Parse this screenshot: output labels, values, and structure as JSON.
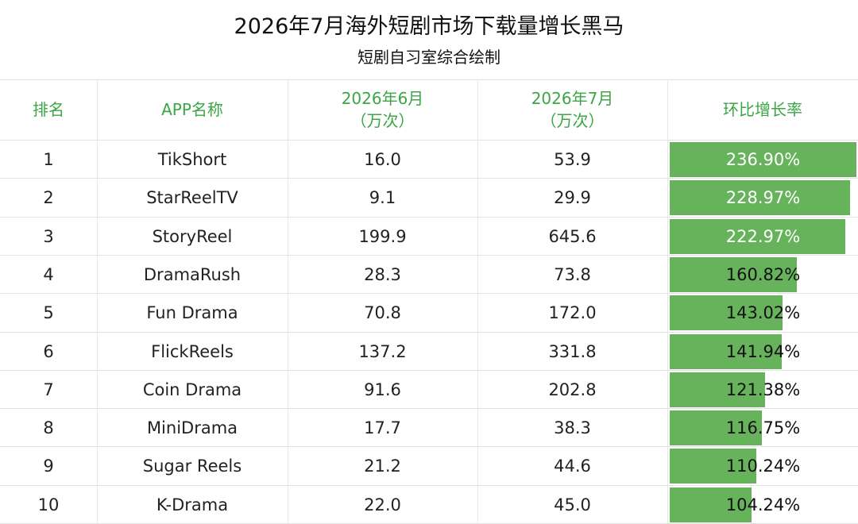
{
  "title": "2026年7月海外短剧市场下载量增长黑马",
  "subtitle": "短剧自习室综合绘制",
  "headers": {
    "rank": "排名",
    "app": "APP名称",
    "june_line1": "2026年6月",
    "june_line2": "（万次）",
    "july_line1": "2026年7月",
    "july_line2": "（万次）",
    "growth": "环比增长率"
  },
  "colors": {
    "header_text": "#3aa644",
    "bar": "#66b35c"
  },
  "chart_data": {
    "type": "table",
    "columns": [
      "排名",
      "APP名称",
      "2026年6月（万次）",
      "2026年7月（万次）",
      "环比增长率"
    ],
    "rows": [
      {
        "rank": "1",
        "app": "TikShort",
        "june": "16.0",
        "july": "53.9",
        "growth": "236.90%",
        "growth_value": 236.9
      },
      {
        "rank": "2",
        "app": "StarReelTV",
        "june": "9.1",
        "july": "29.9",
        "growth": "228.97%",
        "growth_value": 228.97
      },
      {
        "rank": "3",
        "app": "StoryReel",
        "june": "199.9",
        "july": "645.6",
        "growth": "222.97%",
        "growth_value": 222.97
      },
      {
        "rank": "4",
        "app": "DramaRush",
        "june": "28.3",
        "july": "73.8",
        "growth": "160.82%",
        "growth_value": 160.82
      },
      {
        "rank": "5",
        "app": "Fun Drama",
        "june": "70.8",
        "july": "172.0",
        "growth": "143.02%",
        "growth_value": 143.02
      },
      {
        "rank": "6",
        "app": "FlickReels",
        "june": "137.2",
        "july": "331.8",
        "growth": "141.94%",
        "growth_value": 141.94
      },
      {
        "rank": "7",
        "app": "Coin Drama",
        "june": "91.6",
        "july": "202.8",
        "growth": "121.38%",
        "growth_value": 121.38
      },
      {
        "rank": "8",
        "app": "MiniDrama",
        "june": "17.7",
        "july": "38.3",
        "growth": "116.75%",
        "growth_value": 116.75
      },
      {
        "rank": "9",
        "app": "Sugar Reels",
        "june": "21.2",
        "july": "44.6",
        "growth": "110.24%",
        "growth_value": 110.24
      },
      {
        "rank": "10",
        "app": "K-Drama",
        "june": "22.0",
        "july": "45.0",
        "growth": "104.24%",
        "growth_value": 104.24
      }
    ]
  }
}
